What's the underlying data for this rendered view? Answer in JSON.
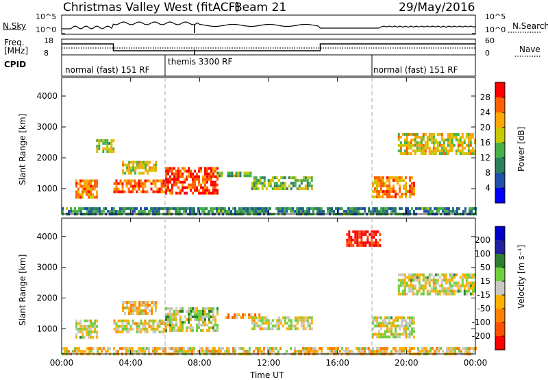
{
  "header": {
    "title": "Christmas Valley West (fitACF)",
    "beam": "Beam 21",
    "date": "29/May/2016"
  },
  "noise_panel": {
    "left_label": "N.Sky",
    "right_label": "N.Search",
    "left_ticks": [
      "10^5",
      "10^0"
    ],
    "right_ticks": [
      "10^5",
      "10^0"
    ]
  },
  "freq_panel": {
    "left_label_1": "Freq.",
    "left_label_2": "[MHz]",
    "right_label": "Nave",
    "left_ticks": [
      "18",
      "8"
    ],
    "right_ticks": [
      "60",
      "0"
    ]
  },
  "cpid": {
    "label": "CPID",
    "segments": [
      {
        "start_hour": 0,
        "text": "normal (fast) 151 RF"
      },
      {
        "start_hour": 6,
        "text": "themis 3300 RF"
      },
      {
        "start_hour": 18,
        "text": "normal (fast) 151 RF"
      }
    ]
  },
  "x_axis": {
    "label": "Time UT",
    "ticks": [
      "00:00",
      "04:00",
      "08:00",
      "12:00",
      "16:00",
      "20:00",
      "00:00"
    ]
  },
  "power_panel": {
    "ylabel": "Slant Range [km]",
    "yticks": [
      "1000",
      "2000",
      "3000",
      "4000"
    ],
    "colorbar_label": "Power [dB]",
    "colorbar_ticks": [
      "4",
      "8",
      "12",
      "16",
      "20",
      "24",
      "28"
    ],
    "colors": [
      "#0000ff",
      "#2050a8",
      "#2f7f5f",
      "#48b048",
      "#c8c800",
      "#ffa500",
      "#ff6000",
      "#ff0000"
    ]
  },
  "velocity_panel": {
    "ylabel": "Slant Range [km]",
    "yticks": [
      "1000",
      "2000",
      "3000",
      "4000"
    ],
    "colorbar_label": "Velocity [m s⁻¹]",
    "colorbar_ticks": [
      "200",
      "100",
      "50",
      "15",
      "-15",
      "-50",
      "-100",
      "-200"
    ],
    "colors": [
      "#0000c8",
      "#2020a0",
      "#2e7d32",
      "#6fcf3f",
      "#c8c8c0",
      "#ffb000",
      "#ff8000",
      "#ff5000",
      "#ff0000"
    ]
  },
  "chart_data": [
    {
      "type": "heatmap",
      "title": "Power",
      "xlabel": "Time UT",
      "ylabel": "Slant Range [km]",
      "xlim": [
        0,
        24
      ],
      "ylim": [
        180,
        4600
      ],
      "clim": [
        0,
        30
      ],
      "colorbar": "Power [dB]",
      "patches": [
        {
          "t0": 0.8,
          "t1": 2.0,
          "r0": 700,
          "r1": 1300,
          "value": 22
        },
        {
          "t0": 2.0,
          "t1": 3.0,
          "r0": 2200,
          "r1": 2600,
          "value": 16
        },
        {
          "t0": 3.0,
          "t1": 6.0,
          "r0": 900,
          "r1": 1300,
          "value": 24
        },
        {
          "t0": 3.5,
          "t1": 5.5,
          "r0": 1500,
          "r1": 1900,
          "value": 18
        },
        {
          "t0": 6.0,
          "t1": 9.0,
          "r0": 900,
          "r1": 1700,
          "value": 26
        },
        {
          "t0": 9.0,
          "t1": 11.0,
          "r0": 1400,
          "r1": 1550,
          "value": 14
        },
        {
          "t0": 11.0,
          "t1": 14.5,
          "r0": 1000,
          "r1": 1400,
          "value": 14
        },
        {
          "t0": 18.0,
          "t1": 20.5,
          "r0": 700,
          "r1": 1400,
          "value": 22
        },
        {
          "t0": 19.5,
          "t1": 24.0,
          "r0": 2100,
          "r1": 2800,
          "value": 18
        },
        {
          "t0": 0.0,
          "t1": 24.0,
          "r0": 180,
          "r1": 400,
          "value": 10
        }
      ]
    },
    {
      "type": "heatmap",
      "title": "Velocity",
      "xlabel": "Time UT",
      "ylabel": "Slant Range [km]",
      "xlim": [
        0,
        24
      ],
      "ylim": [
        180,
        4600
      ],
      "clim": [
        -200,
        200
      ],
      "colorbar": "Velocity [m s⁻¹]",
      "patches": [
        {
          "t0": 0.8,
          "t1": 2.0,
          "r0": 700,
          "r1": 1300,
          "value": 0
        },
        {
          "t0": 3.0,
          "t1": 6.0,
          "r0": 900,
          "r1": 1300,
          "value": -10
        },
        {
          "t0": 3.5,
          "t1": 5.5,
          "r0": 1500,
          "r1": 1900,
          "value": -40
        },
        {
          "t0": 6.0,
          "t1": 9.0,
          "r0": 900,
          "r1": 1700,
          "value": 20
        },
        {
          "t0": 9.5,
          "t1": 11.5,
          "r0": 1350,
          "r1": 1500,
          "value": -80
        },
        {
          "t0": 11.0,
          "t1": 14.5,
          "r0": 1000,
          "r1": 1400,
          "value": 0
        },
        {
          "t0": 16.5,
          "t1": 18.5,
          "r0": 3700,
          "r1": 4200,
          "value": -180
        },
        {
          "t0": 18.0,
          "t1": 20.5,
          "r0": 700,
          "r1": 1400,
          "value": 0
        },
        {
          "t0": 19.5,
          "t1": 24.0,
          "r0": 2100,
          "r1": 2800,
          "value": 0
        },
        {
          "t0": 0.0,
          "t1": 24.0,
          "r0": 180,
          "r1": 400,
          "value": -30
        }
      ]
    }
  ]
}
